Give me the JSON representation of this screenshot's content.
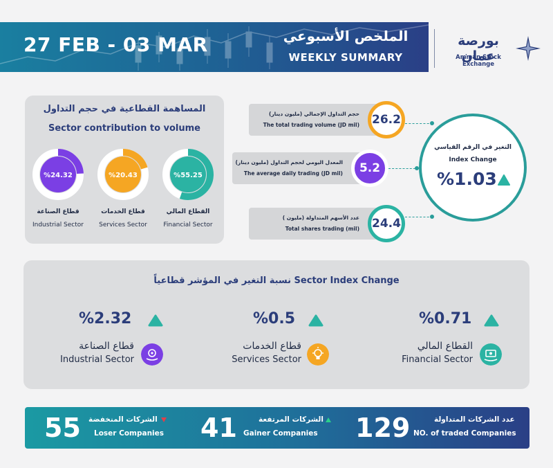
{
  "header": {
    "date_range": "27 FEB - 03 MAR",
    "title_ar": "الملخص الأسبوعي",
    "title_en": "WEEKLY SUMMARY",
    "logo_ar": "بورصة عمان",
    "logo_en": "Amman Stock Exchange"
  },
  "contribution": {
    "title_ar": "المساهمة القطاعية في حجم التداول",
    "title_en": "Sector contribution to volume",
    "sectors": [
      {
        "value_label": "%24.32",
        "percent": 24.32,
        "name_ar": "قطاع الصناعة",
        "name_en": "Industrial Sector",
        "color": "#7b3fe4"
      },
      {
        "value_label": "%20.43",
        "percent": 20.43,
        "name_ar": "قطاع الخدمات",
        "name_en": "Services Sector",
        "color": "#f5a623"
      },
      {
        "value_label": "%55.25",
        "percent": 55.25,
        "name_ar": "القطاع المالي",
        "name_en": "Financial Sector",
        "color": "#2bb3a3"
      }
    ]
  },
  "stats": [
    {
      "value": "26.2",
      "label_ar": "حجم التداول الإجمالي (مليون دينار)",
      "label_en": "The total trading volume (JD mil)",
      "color": "#f5a623"
    },
    {
      "value": "5.2",
      "label_ar": "المعدل اليومي لحجم التداول (مليون دينار)",
      "label_en": "The average daily trading (JD mil)",
      "color": "#7b3fe4"
    },
    {
      "value": "24.4",
      "label_ar": "عدد الأسهم المتداولة (مليون )",
      "label_en": "Total shares trading (mil)",
      "color": "#2bb3a3"
    }
  ],
  "index_change": {
    "label_ar": "التغير في الرقم القياسي",
    "label_en": "Index Change",
    "value": "%1.03",
    "direction": "up"
  },
  "sector_index": {
    "title": "نسبة التغير في المؤشر قطاعياً   Sector Index Change",
    "sectors": [
      {
        "value": "%2.32",
        "name_ar": "قطاع الصناعة",
        "name_en": "Industrial Sector",
        "icon": "gear-hand-icon",
        "color": "#7b3fe4"
      },
      {
        "value": "%0.5",
        "name_ar": "قطاع الخدمات",
        "name_en": "Services Sector",
        "icon": "lightbulb-icon",
        "color": "#f5a623"
      },
      {
        "value": "%0.71",
        "name_ar": "القطاع المالي",
        "name_en": "Financial Sector",
        "icon": "money-hand-icon",
        "color": "#2bb3a3"
      }
    ]
  },
  "footer": {
    "loser": {
      "count": "55",
      "label_ar": "الشركات المنخفضة",
      "label_en": "Loser Companies"
    },
    "gainer": {
      "count": "41",
      "label_ar": "الشركات المرتفعة",
      "label_en": "Gainer Companies"
    },
    "traded": {
      "count": "129",
      "label_ar": "عدد الشركات المتداولة",
      "label_en": "NO. of traded Companies"
    }
  },
  "colors": {
    "navy": "#2b3d7a",
    "teal": "#2bb3a3",
    "up": "#2bb3a3",
    "down": "#e0404a"
  }
}
